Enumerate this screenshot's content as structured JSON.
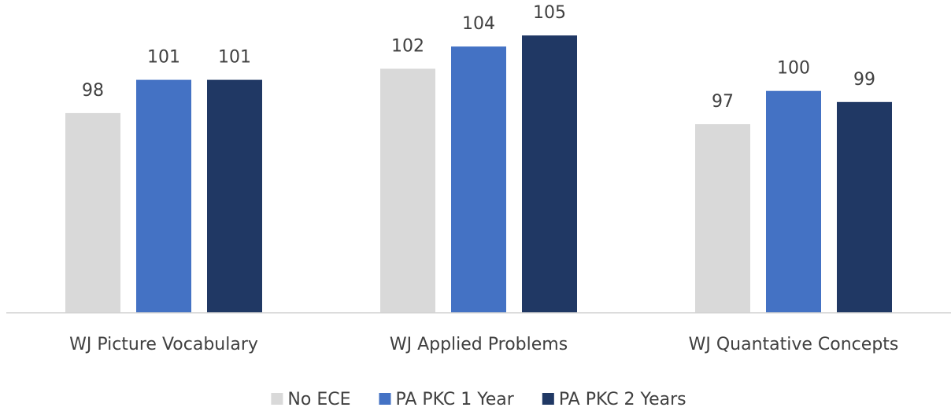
{
  "chart_data": {
    "type": "bar",
    "categories": [
      "WJ Picture Vocabulary",
      "WJ Applied Problems",
      "WJ Quantative Concepts"
    ],
    "series": [
      {
        "name": "No ECE",
        "color": "#d9d9d9",
        "values": [
          98,
          102,
          97
        ]
      },
      {
        "name": "PA PKC 1 Year",
        "color": "#4472c4",
        "values": [
          101,
          104,
          100
        ]
      },
      {
        "name": "PA PKC 2 Years",
        "color": "#203864",
        "values": [
          101,
          105,
          99
        ]
      }
    ],
    "ylim": [
      80,
      106
    ],
    "legend": "bottom"
  }
}
